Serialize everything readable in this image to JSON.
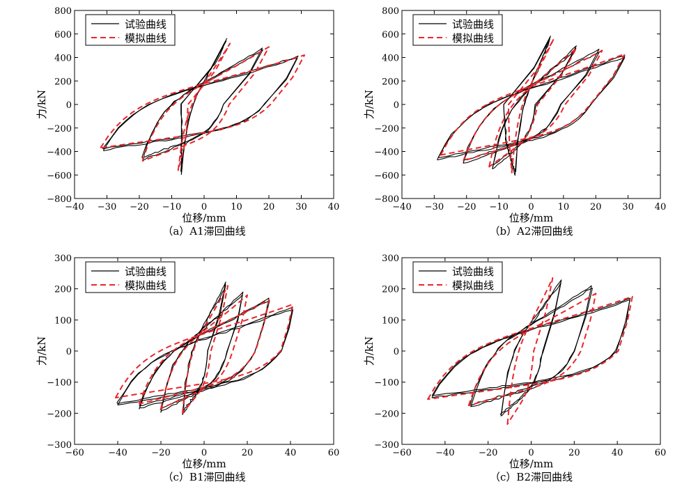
{
  "figure": {
    "background": "#ffffff",
    "test_color": "#000000",
    "sim_color": "#e8262a"
  },
  "chart_data": [
    {
      "type": "line",
      "caption": "（a）A1滞回曲线",
      "xlabel": "位移/mm",
      "ylabel": "力/kN",
      "xlim": [
        -40,
        40
      ],
      "ylim": [
        -800,
        800
      ],
      "xticks": [
        -40,
        -30,
        -20,
        -10,
        0,
        10,
        20,
        30,
        40
      ],
      "yticks": [
        -800,
        -600,
        -400,
        -200,
        0,
        200,
        400,
        600,
        800
      ],
      "xtick_labels": [
        "−40",
        "−30",
        "−20",
        "−10",
        "0",
        "10",
        "20",
        "30",
        "40"
      ],
      "ytick_labels": [
        "−800",
        "−600",
        "−400",
        "−200",
        "0",
        "200",
        "400",
        "600",
        "800"
      ],
      "legend": {
        "position": "top-left",
        "entries": [
          "试验曲线",
          "模拟曲线"
        ]
      },
      "series": [
        {
          "name": "试验曲线",
          "style": "solid",
          "loops": [
            {
              "peak_pos": [
                7,
                560
              ],
              "peak_neg": [
                -7,
                -590
              ]
            },
            {
              "peak_pos": [
                18,
                480
              ],
              "peak_neg": [
                -19,
                -470
              ]
            },
            {
              "peak_pos": [
                29,
                410
              ],
              "peak_neg": [
                -31,
                -390
              ]
            }
          ]
        },
        {
          "name": "模拟曲线",
          "style": "dashed",
          "loops": [
            {
              "peak_pos": [
                8,
                520
              ],
              "peak_neg": [
                -8,
                -560
              ]
            },
            {
              "peak_pos": [
                20,
                490
              ],
              "peak_neg": [
                -19,
                -480
              ]
            },
            {
              "peak_pos": [
                31,
                420
              ],
              "peak_neg": [
                -32,
                -370
              ]
            }
          ]
        }
      ]
    },
    {
      "type": "line",
      "caption": "（b）A2滞回曲线",
      "xlabel": "位移/mm",
      "ylabel": "力/kN",
      "xlim": [
        -40,
        40
      ],
      "ylim": [
        -800,
        800
      ],
      "xticks": [
        -40,
        -30,
        -20,
        -10,
        0,
        10,
        20,
        30,
        40
      ],
      "yticks": [
        -800,
        -600,
        -400,
        -200,
        0,
        200,
        400,
        600,
        800
      ],
      "xtick_labels": [
        "−40",
        "−30",
        "−20",
        "−10",
        "0",
        "10",
        "20",
        "30",
        "40"
      ],
      "ytick_labels": [
        "−800",
        "−600",
        "−400",
        "−200",
        "0",
        "200",
        "400",
        "600",
        "800"
      ],
      "legend": {
        "position": "top-left",
        "entries": [
          "试验曲线",
          "模拟曲线"
        ]
      },
      "series": [
        {
          "name": "试验曲线",
          "style": "solid",
          "loops": [
            {
              "peak_pos": [
                6,
                580
              ],
              "peak_neg": [
                -5,
                -600
              ]
            },
            {
              "peak_pos": [
                14,
                500
              ],
              "peak_neg": [
                -12,
                -550
              ]
            },
            {
              "peak_pos": [
                21,
                470
              ],
              "peak_neg": [
                -21,
                -500
              ]
            },
            {
              "peak_pos": [
                29,
                420
              ],
              "peak_neg": [
                -29,
                -470
              ]
            }
          ]
        },
        {
          "name": "模拟曲线",
          "style": "dashed",
          "loops": [
            {
              "peak_pos": [
                7,
                560
              ],
              "peak_neg": [
                -6,
                -580
              ]
            },
            {
              "peak_pos": [
                14,
                480
              ],
              "peak_neg": [
                -13,
                -530
              ]
            },
            {
              "peak_pos": [
                22,
                460
              ],
              "peak_neg": [
                -21,
                -480
              ]
            },
            {
              "peak_pos": [
                29,
                430
              ],
              "peak_neg": [
                -28,
                -430
              ]
            }
          ]
        }
      ]
    },
    {
      "type": "line",
      "caption": "（c）B1滞回曲线",
      "xlabel": "位移/mm",
      "ylabel": "力/kN",
      "xlim": [
        -60,
        60
      ],
      "ylim": [
        -300,
        300
      ],
      "xticks": [
        -60,
        -40,
        -20,
        0,
        20,
        40,
        60
      ],
      "yticks": [
        -300,
        -200,
        -100,
        0,
        100,
        200,
        300
      ],
      "xtick_labels": [
        "−60",
        "−40",
        "−20",
        "0",
        "20",
        "40",
        "60"
      ],
      "ytick_labels": [
        "−300",
        "−200",
        "−100",
        "0",
        "100",
        "200",
        "300"
      ],
      "legend": {
        "position": "top-left",
        "entries": [
          "试验曲线",
          "模拟曲线"
        ]
      },
      "series": [
        {
          "name": "试验曲线",
          "style": "solid",
          "loops": [
            {
              "peak_pos": [
                10,
                220
              ],
              "peak_neg": [
                -10,
                -205
              ]
            },
            {
              "peak_pos": [
                18,
                190
              ],
              "peak_neg": [
                -20,
                -195
              ]
            },
            {
              "peak_pos": [
                30,
                170
              ],
              "peak_neg": [
                -30,
                -185
              ]
            },
            {
              "peak_pos": [
                41,
                140
              ],
              "peak_neg": [
                -40,
                -175
              ]
            }
          ]
        },
        {
          "name": "模拟曲线",
          "style": "dashed",
          "loops": [
            {
              "peak_pos": [
                11,
                210
              ],
              "peak_neg": [
                -10,
                -200
              ]
            },
            {
              "peak_pos": [
                20,
                180
              ],
              "peak_neg": [
                -20,
                -185
              ]
            },
            {
              "peak_pos": [
                30,
                165
              ],
              "peak_neg": [
                -30,
                -170
              ]
            },
            {
              "peak_pos": [
                41,
                150
              ],
              "peak_neg": [
                -41,
                -150
              ]
            }
          ]
        }
      ]
    },
    {
      "type": "line",
      "caption": "（c）B2滞回曲线",
      "xlabel": "位移/mm",
      "ylabel": "力/kN",
      "xlim": [
        -60,
        60
      ],
      "ylim": [
        -300,
        300
      ],
      "xticks": [
        -60,
        -40,
        -20,
        0,
        20,
        40,
        60
      ],
      "yticks": [
        -300,
        -200,
        -100,
        0,
        100,
        200,
        300
      ],
      "xtick_labels": [
        "−60",
        "−40",
        "−20",
        "0",
        "20",
        "40",
        "60"
      ],
      "ytick_labels": [
        "−300",
        "−200",
        "−100",
        "0",
        "100",
        "200",
        "300"
      ],
      "legend": {
        "position": "top-left",
        "entries": [
          "试验曲线",
          "模拟曲线"
        ]
      },
      "series": [
        {
          "name": "试验曲线",
          "style": "solid",
          "loops": [
            {
              "peak_pos": [
                14,
                230
              ],
              "peak_neg": [
                -14,
                -210
              ]
            },
            {
              "peak_pos": [
                28,
                210
              ],
              "peak_neg": [
                -28,
                -180
              ]
            },
            {
              "peak_pos": [
                46,
                170
              ],
              "peak_neg": [
                -46,
                -150
              ]
            }
          ]
        },
        {
          "name": "模拟曲线",
          "style": "dashed",
          "loops": [
            {
              "peak_pos": [
                10,
                235
              ],
              "peak_neg": [
                -11,
                -235
              ]
            },
            {
              "peak_pos": [
                30,
                185
              ],
              "peak_neg": [
                -29,
                -175
              ]
            },
            {
              "peak_pos": [
                47,
                175
              ],
              "peak_neg": [
                -48,
                -155
              ]
            }
          ]
        }
      ]
    }
  ]
}
